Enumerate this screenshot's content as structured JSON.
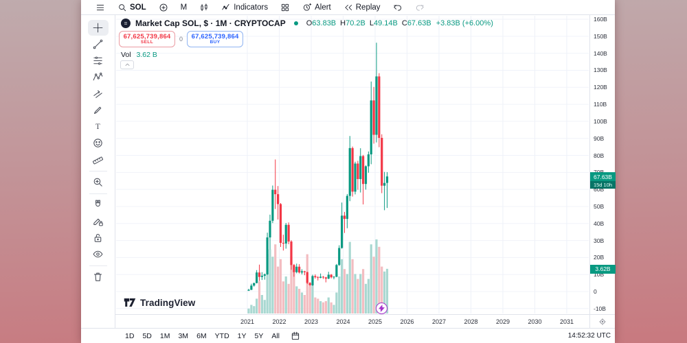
{
  "topbar": {
    "symbol": "SOL",
    "interval": "M",
    "indicators_label": "Indicators",
    "alert_label": "Alert",
    "replay_label": "Replay"
  },
  "left_toolbar": {
    "tools": [
      {
        "id": "crosshair",
        "name": "crosshair-tool",
        "selected": true,
        "group": 1
      },
      {
        "id": "trend-line",
        "name": "trend-line-tool",
        "group": 1
      },
      {
        "id": "fib",
        "name": "fib-retracement-tool",
        "group": 1
      },
      {
        "id": "pattern",
        "name": "xabcd-pattern-tool",
        "group": 1
      },
      {
        "id": "projection",
        "name": "projection-tool",
        "group": 1
      },
      {
        "id": "brush",
        "name": "brush-tool",
        "group": 1
      },
      {
        "id": "text",
        "name": "text-tool",
        "group": 1
      },
      {
        "id": "emoji",
        "name": "emoji-tool",
        "group": 1
      },
      {
        "id": "ruler",
        "name": "measure-ruler-tool",
        "group": 1
      },
      {
        "id": "zoom-in",
        "name": "zoom-in-tool",
        "group": 2
      },
      {
        "id": "magnet",
        "name": "magnet-tool",
        "group": 3
      },
      {
        "id": "pencil-lock",
        "name": "drawing-mode-tool",
        "group": 3
      },
      {
        "id": "lock",
        "name": "lock-all-drawings-tool",
        "group": 3
      },
      {
        "id": "eye",
        "name": "hide-all-drawings-tool",
        "group": 3
      },
      {
        "id": "trash",
        "name": "remove-all-drawings-tool",
        "group": 4
      }
    ]
  },
  "legend": {
    "title": "Market Cap SOL, $ · 1M · CRYPTOCAP",
    "ohlc": [
      {
        "k": "O",
        "v": "63.83B"
      },
      {
        "k": "H",
        "v": "70.2B"
      },
      {
        "k": "L",
        "v": "49.14B"
      },
      {
        "k": "C",
        "v": "67.63B"
      }
    ],
    "change": "+3.83B (+6.00%)"
  },
  "trade_panel": {
    "sell_value": "67,625,739,864",
    "sell_label": "SELL",
    "spread": "0",
    "buy_value": "67,625,739,864",
    "buy_label": "BUY"
  },
  "volume_row": {
    "label": "Vol",
    "value": "3.62 B"
  },
  "logo": {
    "brand": "TradingView"
  },
  "price_axis": {
    "labels": [
      {
        "text": "160B",
        "value": 160
      },
      {
        "text": "150B",
        "value": 150
      },
      {
        "text": "140B",
        "value": 140
      },
      {
        "text": "130B",
        "value": 130
      },
      {
        "text": "120B",
        "value": 120
      },
      {
        "text": "110B",
        "value": 110
      },
      {
        "text": "100B",
        "value": 100
      },
      {
        "text": "90B",
        "value": 90
      },
      {
        "text": "80B",
        "value": 80
      },
      {
        "text": "70B",
        "value": 70
      },
      {
        "text": "60B",
        "value": 60
      },
      {
        "text": "50B",
        "value": 50
      },
      {
        "text": "40B",
        "value": 40
      },
      {
        "text": "30B",
        "value": 30
      },
      {
        "text": "20B",
        "value": 20
      },
      {
        "text": "10B",
        "value": 10
      },
      {
        "text": "0",
        "value": 0
      },
      {
        "text": "-10B",
        "value": -10
      }
    ],
    "price_badge": {
      "text": "67.63B",
      "value": 67.63,
      "countdown": "15d 10h"
    },
    "volume_badge": {
      "text": "3.62B",
      "value": 3.62
    }
  },
  "time_axis": {
    "years": [
      2021,
      2022,
      2023,
      2024,
      2025,
      2026,
      2027,
      2028,
      2029,
      2030,
      2031
    ]
  },
  "bottom_bar": {
    "ranges": [
      "1D",
      "5D",
      "1M",
      "3M",
      "6M",
      "YTD",
      "1Y",
      "5Y",
      "All"
    ],
    "clock": "14:52:32 UTC"
  },
  "chart_data": {
    "type": "candlestick",
    "title": "Market Cap SOL, $ · 1M · CRYPTOCAP",
    "symbol": "CRYPTOCAP:SOL Market Cap",
    "interval": "1M",
    "y_axis": {
      "min": -10,
      "max": 160,
      "step": 10,
      "unit": "billions USD"
    },
    "x_axis_years": [
      2021,
      2022,
      2023,
      2024,
      2025,
      2026,
      2027,
      2028,
      2029,
      2030,
      2031
    ],
    "legend_last_bar": {
      "open": 63.83,
      "high": 70.2,
      "low": 49.14,
      "close": 67.63,
      "change": "+3.83B",
      "change_pct": "+6.00%"
    },
    "current_volume_b": 3.62,
    "colors": {
      "up": "#089981",
      "down": "#f23645",
      "vol_up": "#a9d8d1",
      "vol_down": "#f3bdc1"
    },
    "months": [
      "2021-01",
      "2021-02",
      "2021-03",
      "2021-04",
      "2021-05",
      "2021-06",
      "2021-07",
      "2021-08",
      "2021-09",
      "2021-10",
      "2021-11",
      "2021-12",
      "2022-01",
      "2022-02",
      "2022-03",
      "2022-04",
      "2022-05",
      "2022-06",
      "2022-07",
      "2022-08",
      "2022-09",
      "2022-10",
      "2022-11",
      "2022-12",
      "2023-01",
      "2023-02",
      "2023-03",
      "2023-04",
      "2023-05",
      "2023-06",
      "2023-07",
      "2023-08",
      "2023-09",
      "2023-10",
      "2023-11",
      "2023-12",
      "2024-01",
      "2024-02",
      "2024-03",
      "2024-04",
      "2024-05",
      "2024-06",
      "2024-07",
      "2024-08",
      "2024-09",
      "2024-10",
      "2024-11",
      "2024-12",
      "2025-01",
      "2025-02",
      "2025-03",
      "2025-04",
      "2025-05"
    ],
    "ohlcv": [
      [
        0.5,
        1.6,
        0.35,
        1.0,
        0.4
      ],
      [
        1.0,
        4.6,
        0.9,
        3.5,
        0.7
      ],
      [
        3.5,
        5.2,
        2.9,
        5.0,
        0.6
      ],
      [
        5.0,
        12.6,
        4.8,
        11.2,
        1.2
      ],
      [
        11.2,
        15.8,
        6.2,
        8.6,
        2.6
      ],
      [
        8.6,
        11.4,
        6.8,
        9.3,
        1.5
      ],
      [
        9.3,
        10.6,
        7.0,
        10.1,
        1.1
      ],
      [
        10.1,
        34.6,
        9.8,
        31.8,
        4.8
      ],
      [
        31.8,
        45.2,
        24.8,
        41.6,
        5.2
      ],
      [
        41.6,
        62.3,
        40.2,
        59.8,
        4.6
      ],
      [
        59.8,
        77.6,
        48.5,
        57.2,
        5.6
      ],
      [
        57.2,
        62.0,
        42.3,
        51.4,
        3.8
      ],
      [
        51.4,
        52.0,
        26.2,
        28.6,
        4.4
      ],
      [
        28.6,
        33.4,
        24.1,
        28.2,
        2.6
      ],
      [
        28.2,
        40.3,
        25.2,
        39.2,
        3.0
      ],
      [
        39.2,
        40.6,
        27.8,
        29.4,
        2.4
      ],
      [
        29.4,
        30.2,
        12.8,
        15.6,
        4.6
      ],
      [
        15.6,
        16.2,
        8.7,
        11.4,
        3.4
      ],
      [
        11.4,
        16.4,
        10.7,
        14.6,
        2.2
      ],
      [
        14.6,
        16.1,
        10.6,
        11.2,
        2.0
      ],
      [
        11.2,
        13.1,
        10.1,
        11.9,
        1.7
      ],
      [
        11.9,
        12.2,
        9.6,
        11.4,
        1.5
      ],
      [
        11.4,
        11.6,
        4.4,
        5.1,
        4.8
      ],
      [
        5.1,
        5.5,
        3.0,
        3.7,
        2.2
      ],
      [
        3.7,
        9.9,
        3.4,
        9.1,
        2.4
      ],
      [
        9.1,
        10.1,
        7.6,
        8.4,
        1.3
      ],
      [
        8.4,
        9.1,
        6.5,
        8.1,
        1.2
      ],
      [
        8.1,
        10.6,
        7.8,
        8.7,
        1.0
      ],
      [
        8.7,
        9.1,
        7.4,
        8.3,
        0.9
      ],
      [
        8.3,
        8.6,
        5.4,
        7.6,
        1.0
      ],
      [
        7.6,
        11.6,
        7.3,
        9.9,
        1.3
      ],
      [
        9.9,
        10.3,
        7.7,
        8.4,
        0.9
      ],
      [
        8.4,
        9.1,
        7.2,
        8.7,
        0.7
      ],
      [
        8.7,
        16.2,
        8.4,
        15.6,
        1.7
      ],
      [
        15.6,
        27.2,
        15.1,
        25.6,
        3.0
      ],
      [
        25.6,
        52.3,
        25.2,
        44.6,
        4.4
      ],
      [
        44.6,
        46.8,
        34.4,
        42.7,
        3.6
      ],
      [
        42.7,
        57.3,
        37.2,
        56.2,
        3.2
      ],
      [
        56.2,
        91.4,
        53.1,
        84.3,
        5.8
      ],
      [
        84.3,
        85.2,
        55.8,
        58.7,
        4.4
      ],
      [
        58.7,
        76.3,
        57.1,
        75.2,
        3.2
      ],
      [
        75.2,
        76.8,
        59.8,
        66.1,
        2.8
      ],
      [
        66.1,
        84.2,
        58.2,
        79.6,
        3.2
      ],
      [
        79.6,
        80.3,
        51.2,
        63.2,
        3.6
      ],
      [
        63.2,
        74.1,
        59.9,
        73.6,
        2.4
      ],
      [
        73.6,
        82.3,
        69.8,
        80.6,
        2.8
      ],
      [
        80.6,
        123.4,
        74.8,
        112.3,
        5.6
      ],
      [
        112.3,
        120.2,
        86.9,
        92.1,
        4.6
      ],
      [
        92.1,
        146.2,
        87.6,
        126.4,
        6.0
      ],
      [
        126.4,
        128.3,
        84.8,
        90.3,
        5.4
      ],
      [
        90.3,
        92.4,
        57.8,
        62.2,
        3.8
      ],
      [
        62.2,
        70.3,
        47.8,
        63.8,
        3.4
      ],
      [
        63.83,
        70.2,
        49.14,
        67.63,
        3.62
      ]
    ]
  }
}
